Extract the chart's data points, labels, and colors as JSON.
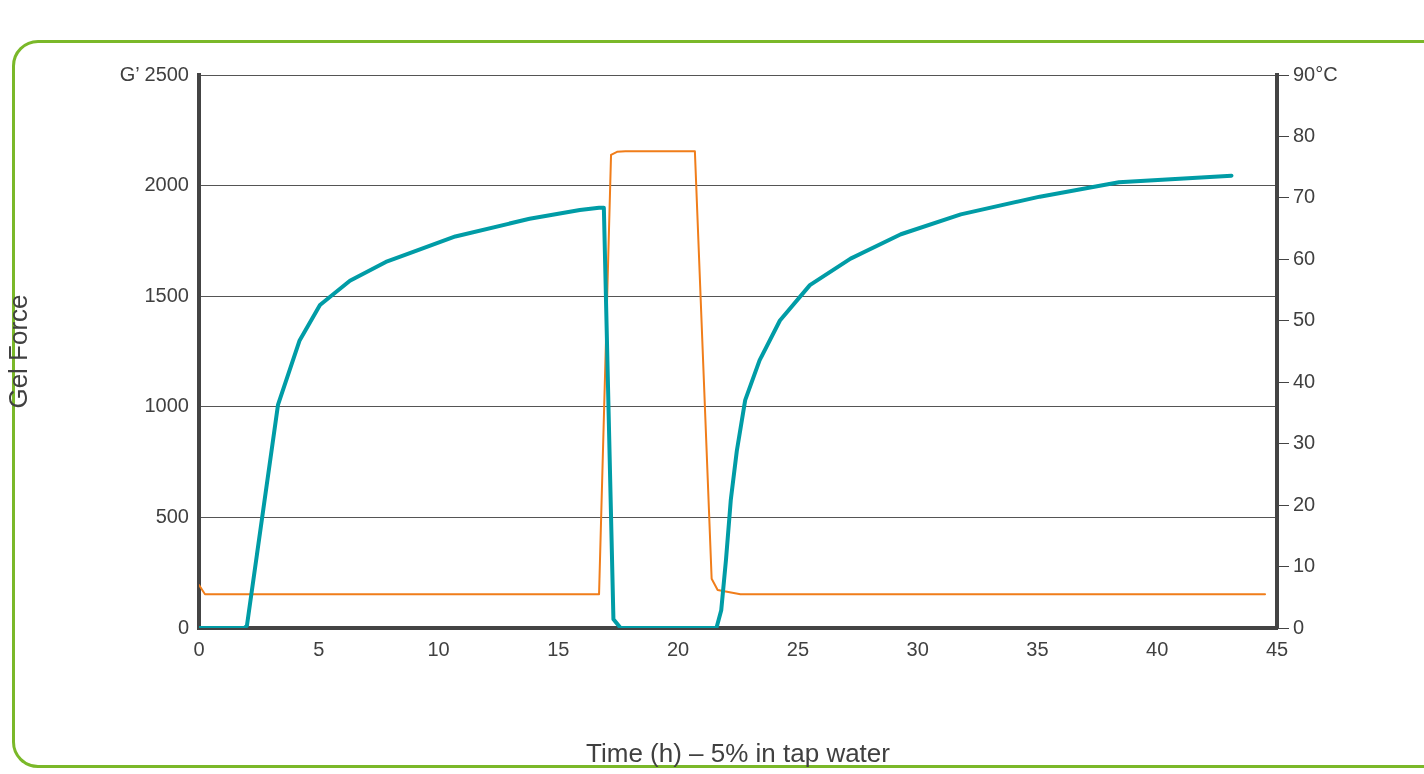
{
  "chart_data": {
    "type": "line",
    "xlabel": "Time (h) – 5% in tap water",
    "ylabel": "Gel Force",
    "xlim": [
      0,
      45
    ],
    "xticks": [
      0,
      5,
      10,
      15,
      20,
      25,
      30,
      35,
      40,
      45
    ],
    "ylim": [
      0,
      2500
    ],
    "yticks": [
      0,
      500,
      1000,
      1500,
      2000,
      {
        "value": 2500,
        "label": "G’ 2500"
      }
    ],
    "y2lim": [
      0,
      90
    ],
    "y2ticks": [
      0,
      10,
      20,
      30,
      40,
      50,
      60,
      70,
      80,
      {
        "value": 90,
        "label": "90°C"
      }
    ],
    "grid": "y",
    "legend": false,
    "marker": "none",
    "line_style": "solid",
    "series": [
      {
        "color": "#009ca6",
        "x": [
          0,
          1.9,
          2.0,
          3.3,
          4.2,
          5.05,
          6.3,
          7.8,
          10.7,
          13.8,
          15.9,
          16.7,
          16.9,
          17.3,
          17.6,
          21.6,
          21.8,
          22.0,
          22.2,
          22.45,
          22.8,
          23.4,
          24.25,
          25.5,
          27.2,
          29.3,
          31.8,
          35.1,
          38.4,
          43.1
        ],
        "values": [
          0,
          0,
          10,
          1010,
          1300,
          1460,
          1570,
          1655,
          1770,
          1850,
          1890,
          1900,
          1900,
          40,
          0,
          0,
          80,
          310,
          580,
          800,
          1030,
          1210,
          1390,
          1550,
          1670,
          1780,
          1870,
          1950,
          2015,
          2045
        ]
      },
      {
        "color": "#f07d1a",
        "axis": "y2",
        "x": [
          0,
          0.25,
          16.7,
          17.2,
          17.45,
          17.8,
          20.7,
          21.4,
          21.65,
          22.6,
          44.5
        ],
        "values": [
          7,
          5.5,
          5.5,
          77,
          77.5,
          77.6,
          77.6,
          8,
          6.2,
          5.5,
          5.5
        ]
      }
    ]
  }
}
